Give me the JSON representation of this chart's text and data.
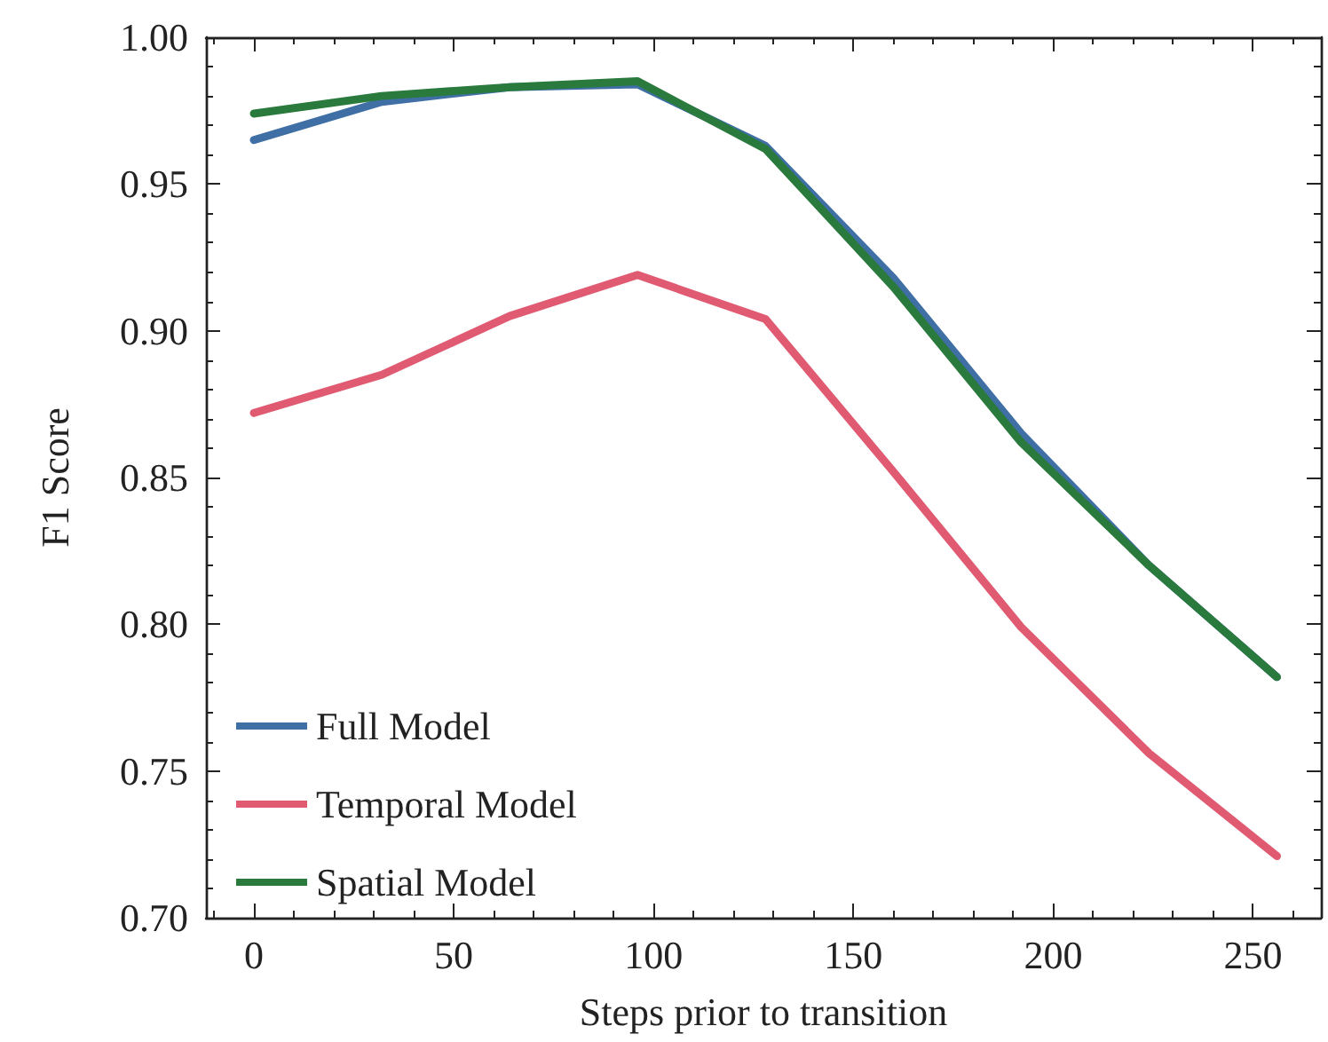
{
  "chart_data": {
    "type": "line",
    "xlabel": "Steps prior to transition",
    "ylabel": "F1 Score",
    "x": [
      0,
      32,
      64,
      96,
      128,
      160,
      192,
      224,
      256
    ],
    "series": [
      {
        "name": "Full Model",
        "color": "#3f6fa5",
        "values": [
          0.965,
          0.978,
          0.983,
          0.984,
          0.963,
          0.918,
          0.865,
          0.82,
          0.782
        ]
      },
      {
        "name": "Temporal Model",
        "color": "#e05a72",
        "values": [
          0.872,
          0.885,
          0.905,
          0.919,
          0.904,
          0.852,
          0.799,
          0.756,
          0.721
        ]
      },
      {
        "name": "Spatial Model",
        "color": "#2a7a3e",
        "values": [
          0.974,
          0.98,
          0.983,
          0.985,
          0.962,
          0.915,
          0.862,
          0.82,
          0.782
        ]
      }
    ],
    "xlim": [
      -12,
      267
    ],
    "xticks": [
      0,
      50,
      100,
      150,
      200,
      250
    ],
    "ylim": [
      0.7,
      1.0
    ],
    "yticks": [
      {
        "value": 0.7,
        "label": "0.70"
      },
      0.75,
      {
        "value": 0.8,
        "label": "0.80"
      },
      0.85,
      {
        "value": 0.9,
        "label": "0.90"
      },
      0.95,
      {
        "value": 1.0,
        "label": "1.00"
      }
    ],
    "grid": false,
    "legend": "bottom left",
    "marker": "none",
    "line_style": "solid"
  }
}
